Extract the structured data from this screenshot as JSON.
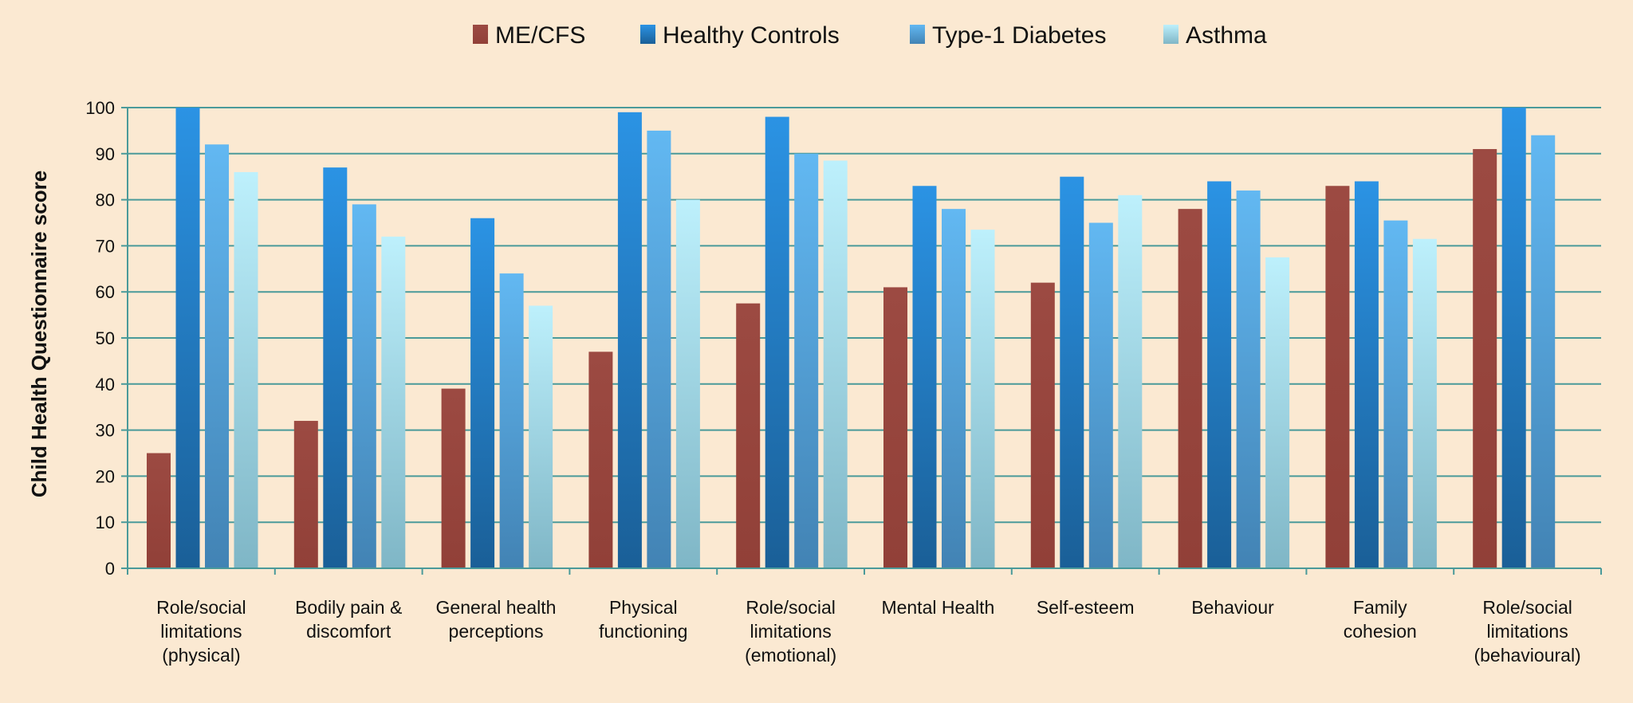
{
  "chart_data": {
    "type": "bar",
    "title": "",
    "xlabel": "",
    "ylabel": "Child Health Questionnaire score",
    "ylim": [
      0,
      100
    ],
    "yticks": [
      0,
      10,
      20,
      30,
      40,
      50,
      60,
      70,
      80,
      90,
      100
    ],
    "grid": true,
    "legend_position": "top",
    "categories": [
      [
        "Role/social",
        "limitations",
        "(physical)"
      ],
      [
        "Bodily pain &",
        "discomfort"
      ],
      [
        "General health",
        "perceptions"
      ],
      [
        "Physical",
        "functioning"
      ],
      [
        "Role/social",
        "limitations",
        "(emotional)"
      ],
      [
        "Mental Health"
      ],
      [
        "Self-esteem"
      ],
      [
        "Behaviour"
      ],
      [
        "Family",
        "cohesion"
      ],
      [
        "Role/social",
        "limitations",
        "(behavioural)"
      ]
    ],
    "series": [
      {
        "name": "ME/CFS",
        "color": "#9c4a42",
        "values": [
          25,
          32,
          39,
          47,
          57.5,
          61,
          62,
          78,
          83,
          91
        ]
      },
      {
        "name": "Healthy Controls",
        "color": "#2a8ad6",
        "values": [
          100,
          87,
          76,
          99,
          98,
          83,
          85,
          84,
          84,
          100
        ]
      },
      {
        "name": "Type-1 Diabetes",
        "color": "#5cb0ec",
        "values": [
          92,
          79,
          64,
          95,
          90,
          78,
          75,
          82,
          75.5,
          94
        ]
      },
      {
        "name": "Asthma",
        "color": "#aee6f6",
        "values": [
          86,
          72,
          57,
          80,
          88.5,
          73.5,
          81,
          67.5,
          71.5,
          null
        ]
      }
    ]
  }
}
